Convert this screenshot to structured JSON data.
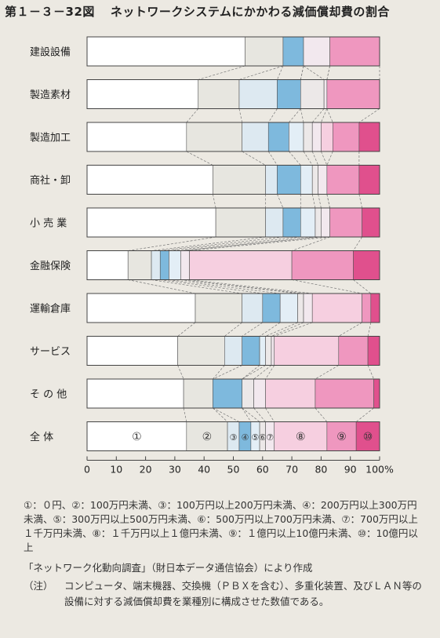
{
  "figure": {
    "number": "第１－３－32図",
    "title": "ネットワークシステムにかかわる減価償却費の割合"
  },
  "chart_data": {
    "type": "bar",
    "orientation": "horizontal",
    "stacked": true,
    "categories": [
      "建設設備",
      "製造素材",
      "製造加工",
      "商社・卸",
      "小 売 業",
      "金融保険",
      "運輸倉庫",
      "サービス",
      "そ の 他",
      "全 体"
    ],
    "segment_labels": [
      "①",
      "②",
      "③",
      "④",
      "⑤",
      "⑥",
      "⑦",
      "⑧",
      "⑨",
      "⑩"
    ],
    "labeled_category": "全 体",
    "series": [
      {
        "name": "①",
        "values": [
          54,
          38,
          34,
          43,
          44,
          14,
          37,
          31,
          33,
          34
        ]
      },
      {
        "name": "②",
        "values": [
          13,
          14,
          19,
          18,
          17,
          8,
          16,
          16,
          10,
          14
        ]
      },
      {
        "name": "③",
        "values": [
          0,
          13,
          9,
          4,
          6,
          3,
          7,
          6,
          0,
          4
        ]
      },
      {
        "name": "④",
        "values": [
          7,
          8,
          7,
          8,
          6,
          3,
          6,
          6,
          10,
          4
        ]
      },
      {
        "name": "⑤",
        "values": [
          0,
          0,
          5,
          4,
          5,
          4,
          6,
          2,
          0,
          3
        ]
      },
      {
        "name": "⑥",
        "values": [
          0,
          8,
          3,
          2,
          2,
          0,
          2,
          2,
          4,
          2
        ]
      },
      {
        "name": "⑦",
        "values": [
          9,
          1,
          3,
          3,
          3,
          3,
          3,
          1,
          4,
          3
        ]
      },
      {
        "name": "⑧",
        "values": [
          0,
          0,
          4,
          0,
          0,
          35,
          17,
          22,
          17,
          18
        ]
      },
      {
        "name": "⑨",
        "values": [
          17,
          18,
          9,
          11,
          11,
          21,
          3,
          10,
          20,
          10
        ]
      },
      {
        "name": "⑩",
        "values": [
          0,
          0,
          7,
          7,
          6,
          9,
          3,
          4,
          2,
          8
        ]
      }
    ],
    "colors": [
      "#ffffff",
      "#e7e6e0",
      "#dde9f1",
      "#7eb9dd",
      "#e3eef6",
      "#ece8e8",
      "#f2e8ee",
      "#f6cfe0",
      "#ef97bf",
      "#e0508d"
    ],
    "xaxis": {
      "ticks": [
        0,
        10,
        20,
        30,
        40,
        50,
        60,
        70,
        80,
        90,
        100
      ],
      "tick_labels": [
        "0",
        "10",
        "20",
        "30",
        "40",
        "50",
        "60",
        "70",
        "80",
        "90",
        "100%"
      ]
    },
    "xlim": [
      0,
      100
    ],
    "title": "ネットワークシステムにかかわる減価償却費の割合",
    "xlabel": "",
    "ylabel": "",
    "grid": false
  },
  "legend_text": "①：０円、②：100万円未満、③：100万円以上200万円未満、④：200万円以上300万円未満、⑤：300万円以上500万円未満、⑥：500万円以上700万円未満、⑦：700万円以上１千万円未満、⑧：１千万円以上１億円未満、⑨：１億円以上10億円未満、⑩：10億円以上",
  "source_text": "「ネットワーク化動向調査」（財日本データ通信協会）により作成",
  "note": {
    "tag": "（注）",
    "text": "コンピュータ、端末機器、交換機（ＰＢＸを含む）、多重化装置、及びＬＡＮ等の設備に対する減価償却費を業種別に構成させた数値である。"
  }
}
